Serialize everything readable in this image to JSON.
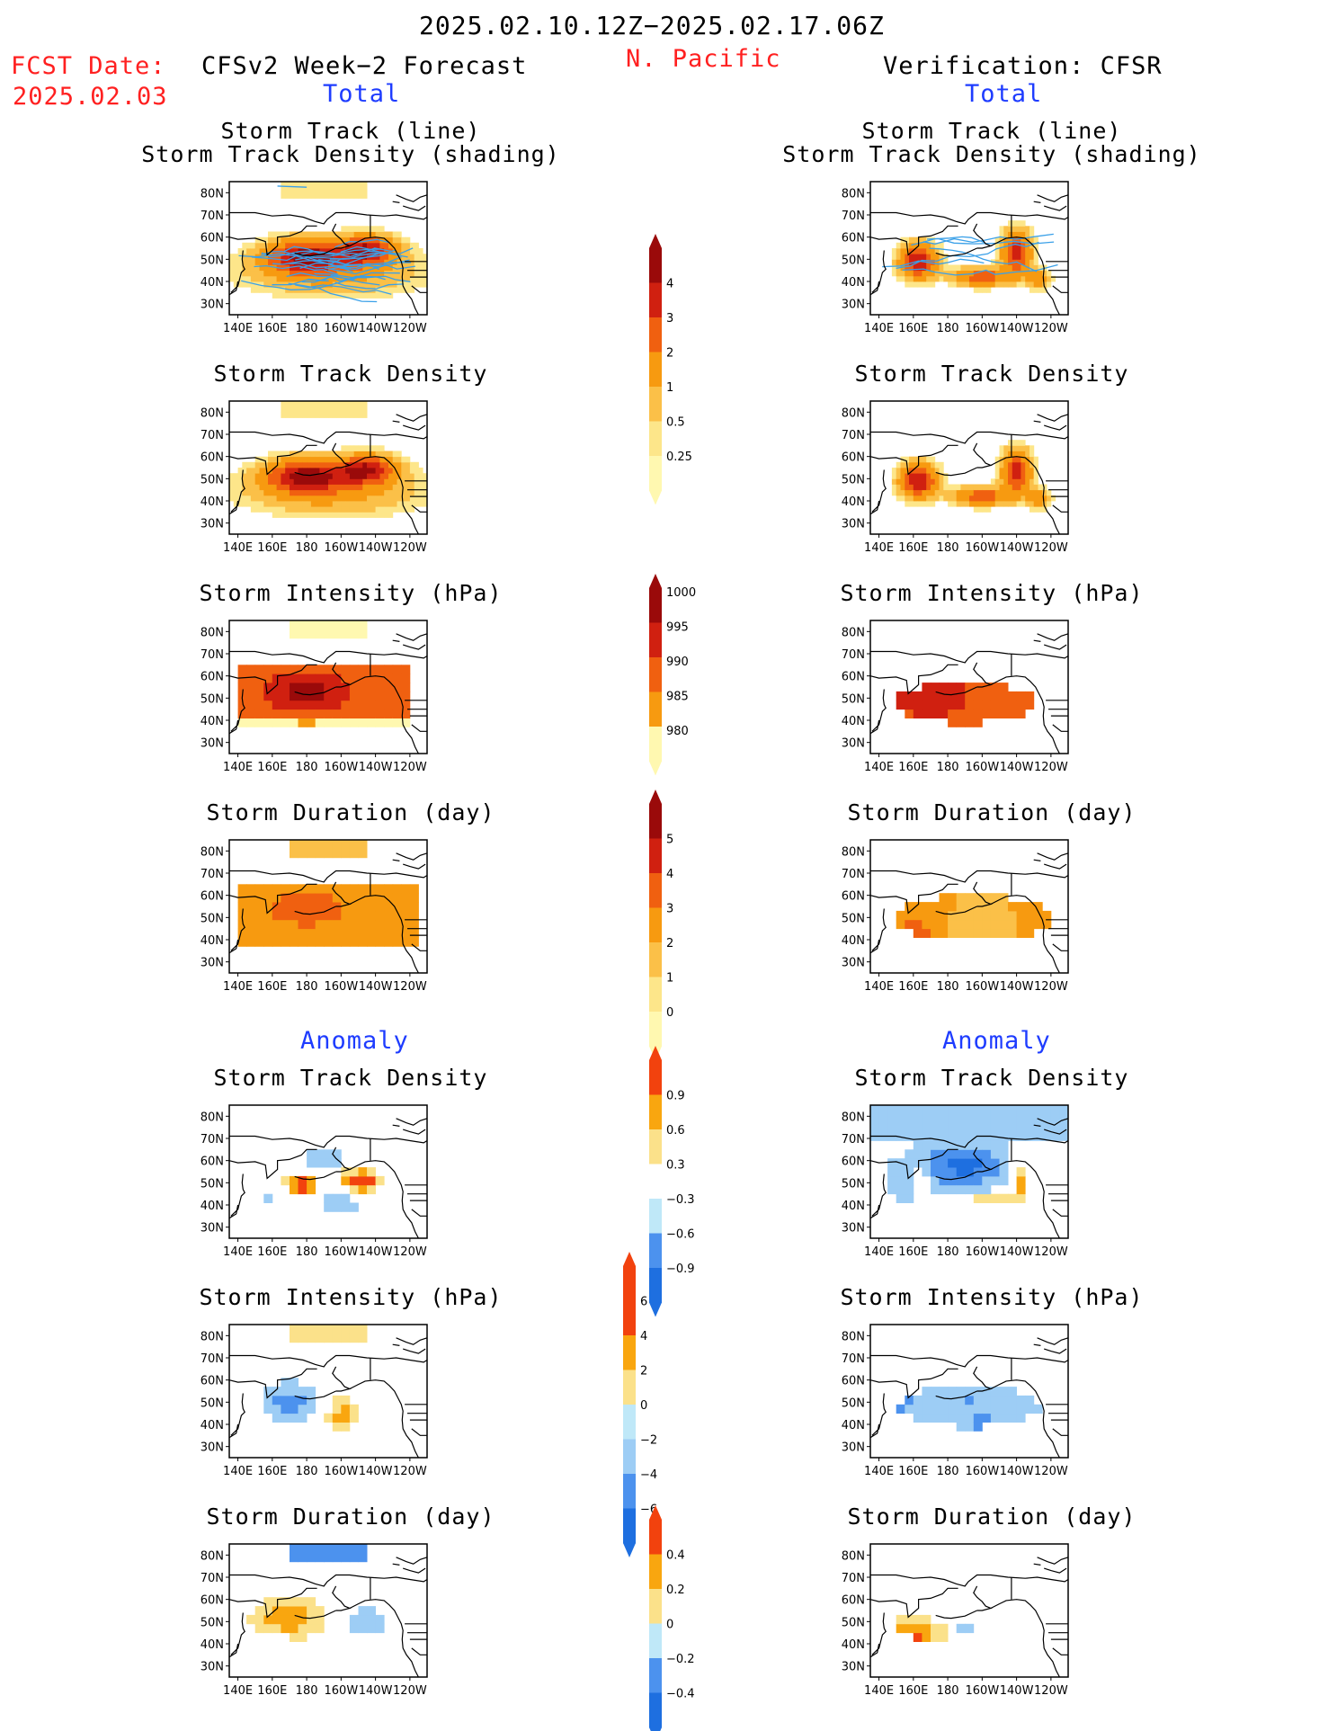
{
  "header": {
    "valid_period": "2025.02.10.12Z−2025.02.17.06Z",
    "fcst_date_label": "FCST Date:",
    "fcst_date": "2025.02.03",
    "forecast_title": "CFSv2 Week−2 Forecast",
    "region": "N. Pacific",
    "verification_title": "Verification: CFSR",
    "total_label": "Total",
    "anomaly_label": "Anomaly"
  },
  "panel_titles": {
    "track": [
      "Storm Track (line)",
      "Storm Track Density (shading)"
    ],
    "density": "Storm Track Density",
    "intensity": "Storm Intensity (hPa)",
    "duration": "Storm Duration (day)"
  },
  "axes": {
    "lat_ticks": [
      "80N",
      "70N",
      "60N",
      "50N",
      "40N",
      "30N"
    ],
    "lon_ticks": [
      "140E",
      "160E",
      "180",
      "160W",
      "140W",
      "120W"
    ]
  },
  "colorbars": {
    "density_total": [
      "0.25",
      "0.5",
      "1",
      "2",
      "3",
      "4"
    ],
    "intensity_total": [
      "1000",
      "995",
      "990",
      "985",
      "980"
    ],
    "duration_total": [
      "0",
      "1",
      "2",
      "3",
      "4",
      "5"
    ],
    "density_anomaly": [
      "−0.9",
      "−0.6",
      "−0.3",
      "0.3",
      "0.6",
      "0.9"
    ],
    "intensity_anomaly": [
      "−6",
      "−4",
      "−2",
      "0",
      "2",
      "4",
      "6"
    ],
    "duration_anomaly": [
      "−0.4",
      "−0.2",
      "0",
      "0.2",
      "0.4"
    ]
  },
  "colors": {
    "warm_scale": [
      "#fff8b0",
      "#fde68a",
      "#fbc048",
      "#f79a10",
      "#f06010",
      "#d02010",
      "#9a0a0a"
    ],
    "anomaly_scale": [
      "#1e6fe0",
      "#4c92ee",
      "#9dcdf5",
      "#bfe8f8",
      "#ffffff",
      "#fbe18a",
      "#f9a60f",
      "#f2420e"
    ],
    "track_line": "#3aa0e8",
    "header_red": "#ff2020",
    "label_blue": "#1e3cff"
  }
}
